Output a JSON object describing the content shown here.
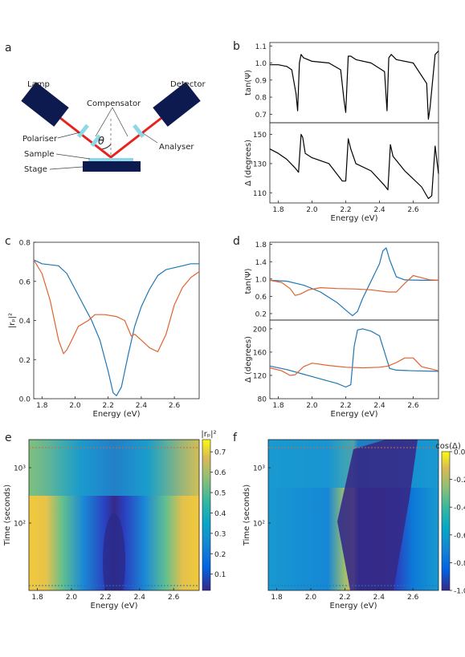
{
  "panel_labels": {
    "a": "a",
    "b": "b",
    "c": "c",
    "d": "d",
    "e": "e",
    "f": "f"
  },
  "schematic": {
    "labels": {
      "lamp": "Lamp",
      "detector": "Detector",
      "compensator": "Compensator",
      "polariser": "Polariser",
      "analyser": "Analyser",
      "sample": "Sample",
      "stage": "Stage",
      "theta": "θ"
    },
    "colors": {
      "block": "#0d1a4f",
      "beam": "#e8231e",
      "optic": "#8fd8e8",
      "stage": "#0d1a4f"
    }
  },
  "colors": {
    "blue": "#1f77b4",
    "orange": "#e0622f",
    "black": "#000000"
  },
  "chart_data": [
    {
      "id": "b-top",
      "type": "line",
      "ylabel": "tan(Ψ)",
      "xlim": [
        1.75,
        2.75
      ],
      "ylim": [
        0.65,
        1.12
      ],
      "yticks": [
        "0.7",
        "0.8",
        "0.9",
        "1.0",
        "1.1"
      ],
      "series": [
        {
          "color": "black",
          "x": [
            1.75,
            1.8,
            1.85,
            1.88,
            1.905,
            1.915,
            1.925,
            1.935,
            1.95,
            2.0,
            2.1,
            2.17,
            2.19,
            2.2,
            2.215,
            2.23,
            2.26,
            2.35,
            2.43,
            2.445,
            2.455,
            2.47,
            2.5,
            2.6,
            2.68,
            2.69,
            2.7,
            2.73,
            2.75
          ],
          "y": [
            0.99,
            0.99,
            0.98,
            0.96,
            0.82,
            0.72,
            1.0,
            1.05,
            1.03,
            1.01,
            1.0,
            0.96,
            0.78,
            0.71,
            1.04,
            1.04,
            1.02,
            1.0,
            0.95,
            0.72,
            1.03,
            1.05,
            1.02,
            1.0,
            0.88,
            0.67,
            0.74,
            1.05,
            1.07
          ]
        }
      ]
    },
    {
      "id": "b-bottom",
      "type": "line",
      "ylabel": "Δ (degrees)",
      "xlabel": "Energy (eV)",
      "xlim": [
        1.75,
        2.75
      ],
      "ylim": [
        103,
        158
      ],
      "xticks": [
        "1.8",
        "2.0",
        "2.2",
        "2.4",
        "2.6"
      ],
      "yticks": [
        "110",
        "130",
        "150"
      ],
      "series": [
        {
          "color": "black",
          "x": [
            1.75,
            1.8,
            1.85,
            1.9,
            1.92,
            1.935,
            1.945,
            1.96,
            2.0,
            2.1,
            2.18,
            2.2,
            2.215,
            2.23,
            2.26,
            2.35,
            2.43,
            2.45,
            2.465,
            2.48,
            2.55,
            2.65,
            2.69,
            2.71,
            2.73,
            2.75
          ],
          "y": [
            140,
            137,
            133,
            127,
            124,
            150,
            148,
            137,
            134,
            130,
            118,
            118,
            147,
            140,
            130,
            125,
            115,
            112,
            143,
            135,
            125,
            114,
            106,
            108,
            142,
            123
          ]
        }
      ]
    },
    {
      "id": "c",
      "type": "line",
      "ylabel": "|rₚ|²",
      "xlabel": "Energy (eV)",
      "xlim": [
        1.75,
        2.75
      ],
      "ylim": [
        0,
        0.8
      ],
      "xticks": [
        "1.8",
        "2.0",
        "2.2",
        "2.4",
        "2.6"
      ],
      "yticks": [
        "0.0",
        "0.2",
        "0.4",
        "0.6",
        "0.8"
      ],
      "series": [
        {
          "color": "blue",
          "x": [
            1.75,
            1.8,
            1.9,
            1.95,
            2.0,
            2.05,
            2.1,
            2.15,
            2.2,
            2.23,
            2.25,
            2.28,
            2.32,
            2.36,
            2.4,
            2.45,
            2.5,
            2.55,
            2.6,
            2.65,
            2.7,
            2.75
          ],
          "y": [
            0.71,
            0.69,
            0.68,
            0.64,
            0.56,
            0.48,
            0.4,
            0.3,
            0.14,
            0.03,
            0.015,
            0.06,
            0.22,
            0.37,
            0.47,
            0.56,
            0.63,
            0.66,
            0.67,
            0.68,
            0.69,
            0.69
          ]
        },
        {
          "color": "orange",
          "x": [
            1.75,
            1.8,
            1.85,
            1.9,
            1.93,
            1.95,
            1.98,
            2.02,
            2.08,
            2.12,
            2.18,
            2.25,
            2.3,
            2.34,
            2.36,
            2.4,
            2.45,
            2.5,
            2.55,
            2.6,
            2.65,
            2.7,
            2.75
          ],
          "y": [
            0.71,
            0.64,
            0.5,
            0.3,
            0.23,
            0.25,
            0.3,
            0.37,
            0.4,
            0.43,
            0.43,
            0.42,
            0.4,
            0.32,
            0.33,
            0.3,
            0.26,
            0.24,
            0.33,
            0.48,
            0.57,
            0.62,
            0.65
          ]
        }
      ]
    },
    {
      "id": "d-top",
      "type": "line",
      "ylabel": "tan(Ψ)",
      "xlim": [
        1.75,
        2.75
      ],
      "ylim": [
        0.05,
        1.85
      ],
      "yticks": [
        "0.2",
        "0.6",
        "1.0",
        "1.4",
        "1.8"
      ],
      "series": [
        {
          "color": "blue",
          "x": [
            1.75,
            1.85,
            1.95,
            2.05,
            2.15,
            2.2,
            2.24,
            2.27,
            2.3,
            2.35,
            2.4,
            2.42,
            2.44,
            2.46,
            2.5,
            2.55,
            2.65,
            2.75
          ],
          "y": [
            0.97,
            0.95,
            0.86,
            0.7,
            0.45,
            0.28,
            0.15,
            0.25,
            0.55,
            0.95,
            1.35,
            1.65,
            1.72,
            1.45,
            1.05,
            0.98,
            0.97,
            0.97
          ]
        },
        {
          "color": "orange",
          "x": [
            1.75,
            1.82,
            1.87,
            1.9,
            1.93,
            1.98,
            2.05,
            2.15,
            2.25,
            2.35,
            2.45,
            2.5,
            2.55,
            2.6,
            2.65,
            2.7,
            2.75
          ],
          "y": [
            0.97,
            0.92,
            0.78,
            0.62,
            0.65,
            0.75,
            0.8,
            0.78,
            0.77,
            0.75,
            0.7,
            0.7,
            0.9,
            1.08,
            1.03,
            0.98,
            0.97
          ]
        }
      ]
    },
    {
      "id": "d-bottom",
      "type": "line",
      "ylabel": "Δ (degrees)",
      "xlabel": "Energy (eV)",
      "xlim": [
        1.75,
        2.75
      ],
      "ylim": [
        80,
        215
      ],
      "xticks": [
        "1.8",
        "2.0",
        "2.2",
        "2.4",
        "2.6"
      ],
      "yticks": [
        "80",
        "120",
        "160",
        "200"
      ],
      "series": [
        {
          "color": "blue",
          "x": [
            1.75,
            1.85,
            1.95,
            2.05,
            2.15,
            2.2,
            2.23,
            2.25,
            2.27,
            2.3,
            2.35,
            2.4,
            2.43,
            2.46,
            2.5,
            2.6,
            2.75
          ],
          "y": [
            136,
            130,
            122,
            114,
            106,
            100,
            104,
            170,
            198,
            200,
            196,
            188,
            160,
            132,
            129,
            128,
            127
          ]
        },
        {
          "color": "orange",
          "x": [
            1.75,
            1.82,
            1.87,
            1.9,
            1.95,
            2.0,
            2.1,
            2.2,
            2.3,
            2.4,
            2.45,
            2.5,
            2.55,
            2.6,
            2.65,
            2.75
          ],
          "y": [
            133,
            128,
            120,
            121,
            135,
            141,
            137,
            134,
            133,
            134,
            136,
            142,
            150,
            150,
            135,
            128
          ]
        }
      ]
    },
    {
      "id": "e",
      "type": "heatmap",
      "xlabel": "Energy (eV)",
      "ylabel": "Time (seconds)",
      "xlim": [
        1.75,
        2.75
      ],
      "xticks": [
        "1.8",
        "2.0",
        "2.2",
        "2.4",
        "2.6"
      ],
      "yticks": [
        "10²",
        "10³"
      ],
      "colorbar": {
        "label": "|rₚ|²",
        "range": [
          0.02,
          0.76
        ],
        "ticks": [
          "0.1",
          "0.2",
          "0.3",
          "0.4",
          "0.5",
          "0.6",
          "0.7"
        ]
      }
    },
    {
      "id": "f",
      "type": "heatmap",
      "xlabel": "Energy (eV)",
      "ylabel": "Time (seconds)",
      "xlim": [
        1.75,
        2.75
      ],
      "xticks": [
        "1.8",
        "2.0",
        "2.2",
        "2.4",
        "2.6"
      ],
      "yticks": [
        "10²",
        "10³"
      ],
      "colorbar": {
        "label": "cos(Δ)",
        "range": [
          -1.0,
          0.0
        ],
        "ticks": [
          "0.0",
          "-0.2",
          "-0.4",
          "-0.6",
          "-0.8",
          "-1.0"
        ]
      }
    }
  ]
}
